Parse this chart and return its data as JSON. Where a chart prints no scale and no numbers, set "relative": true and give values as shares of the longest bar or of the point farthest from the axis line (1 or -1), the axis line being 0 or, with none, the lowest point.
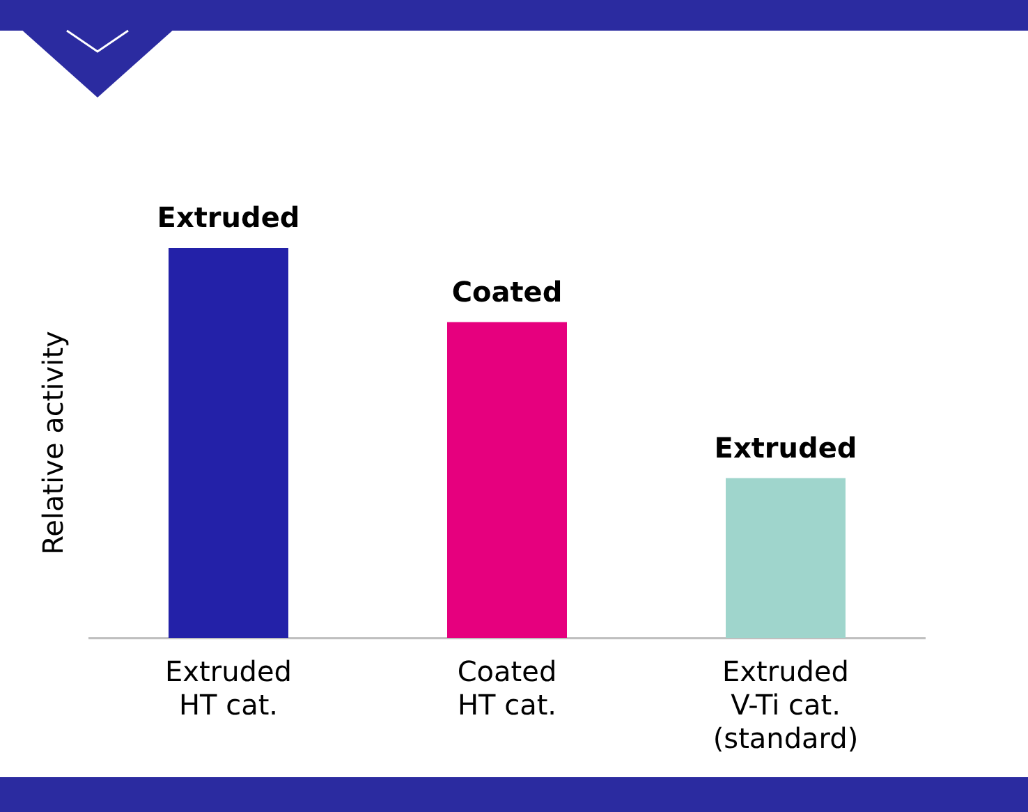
{
  "chart_data": {
    "type": "bar",
    "relative": true,
    "ylabel": "Relative activity",
    "categories": [
      "Extruded\nHT cat.",
      "Coated\nHT cat.",
      "Extruded\nV-Ti cat.\n(standard)"
    ],
    "values": [
      1,
      0.81,
      0.41
    ],
    "colors": [
      "#2321a8",
      "#e6007e",
      "#9fd5cc"
    ],
    "annotations": [
      {
        "text": "Extruded",
        "x": "Extruded\nHT cat.",
        "y": 1
      },
      {
        "text": "Coated",
        "x": "Coated\nHT cat.",
        "y": 0.81
      },
      {
        "text": "Extruded",
        "x": "Extruded\nV-Ti cat.\n(standard)",
        "y": 0.41
      }
    ],
    "grid": false,
    "legend": false
  }
}
